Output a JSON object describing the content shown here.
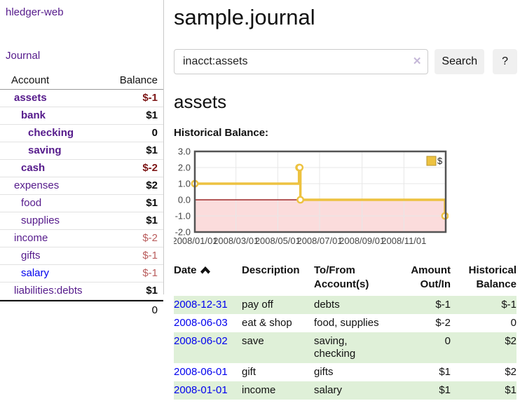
{
  "app": {
    "brand": "hledger-web",
    "nav_journal": "Journal"
  },
  "sidebar": {
    "headers": {
      "account": "Account",
      "balance": "Balance"
    },
    "accounts": [
      {
        "name": "assets",
        "balance": "$-1",
        "depth": 1,
        "name_style": "bold",
        "balance_style": "negstrong"
      },
      {
        "name": "bank",
        "balance": "$1",
        "depth": 2,
        "name_style": "bold",
        "balance_style": "pos"
      },
      {
        "name": "checking",
        "balance": "0",
        "depth": 3,
        "name_style": "bold",
        "balance_style": "pos"
      },
      {
        "name": "saving",
        "balance": "$1",
        "depth": 3,
        "name_style": "bold",
        "balance_style": "pos"
      },
      {
        "name": "cash",
        "balance": "$-2",
        "depth": 2,
        "name_style": "bold",
        "balance_style": "negstrong"
      },
      {
        "name": "expenses",
        "balance": "$2",
        "depth": 1,
        "name_style": "plain",
        "balance_style": "pos"
      },
      {
        "name": "food",
        "balance": "$1",
        "depth": 2,
        "name_style": "plain",
        "balance_style": "pos"
      },
      {
        "name": "supplies",
        "balance": "$1",
        "depth": 2,
        "name_style": "plain",
        "balance_style": "pos"
      },
      {
        "name": "income",
        "balance": "$-2",
        "depth": 1,
        "name_style": "plain",
        "balance_style": "neg"
      },
      {
        "name": "gifts",
        "balance": "$-1",
        "depth": 2,
        "name_style": "plain",
        "balance_style": "neg"
      },
      {
        "name": "salary",
        "balance": "$-1",
        "depth": 2,
        "name_style": "blue",
        "balance_style": "neg"
      },
      {
        "name": "liabilities:debts",
        "balance": "$1",
        "depth": 1,
        "name_style": "plain",
        "balance_style": "pos"
      }
    ],
    "total": "0"
  },
  "header": {
    "title": "sample.journal"
  },
  "search": {
    "value": "inacct:assets",
    "clear_icon": "✕",
    "button": "Search",
    "help_button": "?"
  },
  "account_page": {
    "heading": "assets",
    "chart_label": "Historical Balance:"
  },
  "chart_data": {
    "type": "line",
    "style": "steps",
    "title": "Historical Balance:",
    "series": [
      {
        "name": "$",
        "color": "#edc240",
        "points": [
          [
            "2008-01-01",
            1
          ],
          [
            "2008-06-01",
            2
          ],
          [
            "2008-06-02",
            2
          ],
          [
            "2008-06-03",
            0
          ],
          [
            "2008-12-31",
            -1
          ]
        ]
      }
    ],
    "x_range": [
      "2008-01-01",
      "2009-01-01"
    ],
    "ylim": [
      -2,
      3
    ],
    "y_ticks": [
      3.0,
      2.0,
      1.0,
      0.0,
      -1.0,
      -2.0
    ],
    "x_ticks": [
      "2008/01/01",
      "2008/03/01",
      "2008/05/01",
      "2008/07/01",
      "2008/09/01",
      "2008/11/01"
    ],
    "grid": true,
    "legend_position": "top-right",
    "colors": {
      "negative_region": "#fbdcdc",
      "zero_line": "#8b0000",
      "border": "#545454",
      "gridline": "#e7e7e7",
      "tick_text": "#444444"
    }
  },
  "transactions": {
    "headers": {
      "date": "Date",
      "description": "Description",
      "tofrom": "To/From Account(s)",
      "amount": "Amount Out/In",
      "balance": "Historical Balance"
    },
    "rows": [
      {
        "date": "2008-12-31",
        "description": "pay off",
        "accounts": "debts",
        "amount": "$-1",
        "amount_negative": true,
        "balance": "$-1",
        "balance_negative": true
      },
      {
        "date": "2008-06-03",
        "description": "eat & shop",
        "accounts": "food, supplies",
        "amount": "$-2",
        "amount_negative": true,
        "balance": "0",
        "balance_negative": false
      },
      {
        "date": "2008-06-02",
        "description": "save",
        "accounts": "saving, checking",
        "amount": "0",
        "amount_negative": false,
        "balance": "$2",
        "balance_negative": false
      },
      {
        "date": "2008-06-01",
        "description": "gift",
        "accounts": "gifts",
        "amount": "$1",
        "amount_negative": false,
        "balance": "$2",
        "balance_negative": false
      },
      {
        "date": "2008-01-01",
        "description": "income",
        "accounts": "salary",
        "amount": "$1",
        "amount_negative": false,
        "balance": "$1",
        "balance_negative": false
      }
    ]
  },
  "colors": {
    "link_purple": "#551a8b",
    "link_blue": "#0000ee",
    "negative_strong": "#7d1616",
    "negative_soft": "#b95c5c",
    "table_negative": "#8b2020",
    "row_stripe_green": "#dff0d8",
    "chart_series_yellow": "#edc240",
    "button_gray": "#f0f0f0"
  }
}
